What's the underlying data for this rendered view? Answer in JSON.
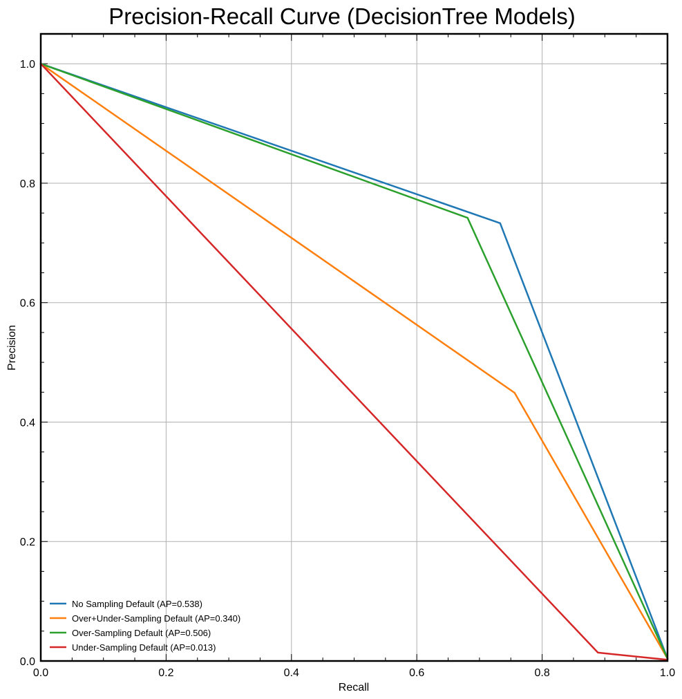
{
  "chart_data": {
    "type": "line",
    "title": "Precision-Recall Curve (DecisionTree Models)",
    "xlabel": "Recall",
    "ylabel": "Precision",
    "xlim": [
      0,
      1
    ],
    "ylim": [
      0,
      1.05
    ],
    "xticks": [
      0.0,
      0.2,
      0.4,
      0.6,
      0.8,
      1.0
    ],
    "xtick_labels": [
      "0.0",
      "0.2",
      "0.4",
      "0.6",
      "0.8",
      "1.0"
    ],
    "yticks": [
      0.0,
      0.2,
      0.4,
      0.6,
      0.8,
      1.0
    ],
    "ytick_labels": [
      "0.0",
      "0.2",
      "0.4",
      "0.6",
      "0.8",
      "1.0"
    ],
    "x_minor_step": 0.05,
    "y_minor_step": 0.05,
    "grid": true,
    "legend_position": "lower-left",
    "series": [
      {
        "name": "No Sampling Default (AP=0.538)",
        "color": "#1f77b4",
        "x": [
          0.0,
          0.733,
          1.0
        ],
        "y": [
          1.0,
          0.733,
          0.004
        ]
      },
      {
        "name": "Over+Under-Sampling Default (AP=0.340)",
        "color": "#ff7f0e",
        "x": [
          0.0,
          0.756,
          1.0
        ],
        "y": [
          1.0,
          0.449,
          0.004
        ]
      },
      {
        "name": "Over-Sampling Default (AP=0.506)",
        "color": "#2ca02c",
        "x": [
          0.0,
          0.681,
          1.0
        ],
        "y": [
          1.0,
          0.742,
          0.004
        ]
      },
      {
        "name": "Under-Sampling Default (AP=0.013)",
        "color": "#d62728",
        "x": [
          0.0,
          0.889,
          1.0
        ],
        "y": [
          1.0,
          0.014,
          0.002
        ]
      }
    ]
  }
}
